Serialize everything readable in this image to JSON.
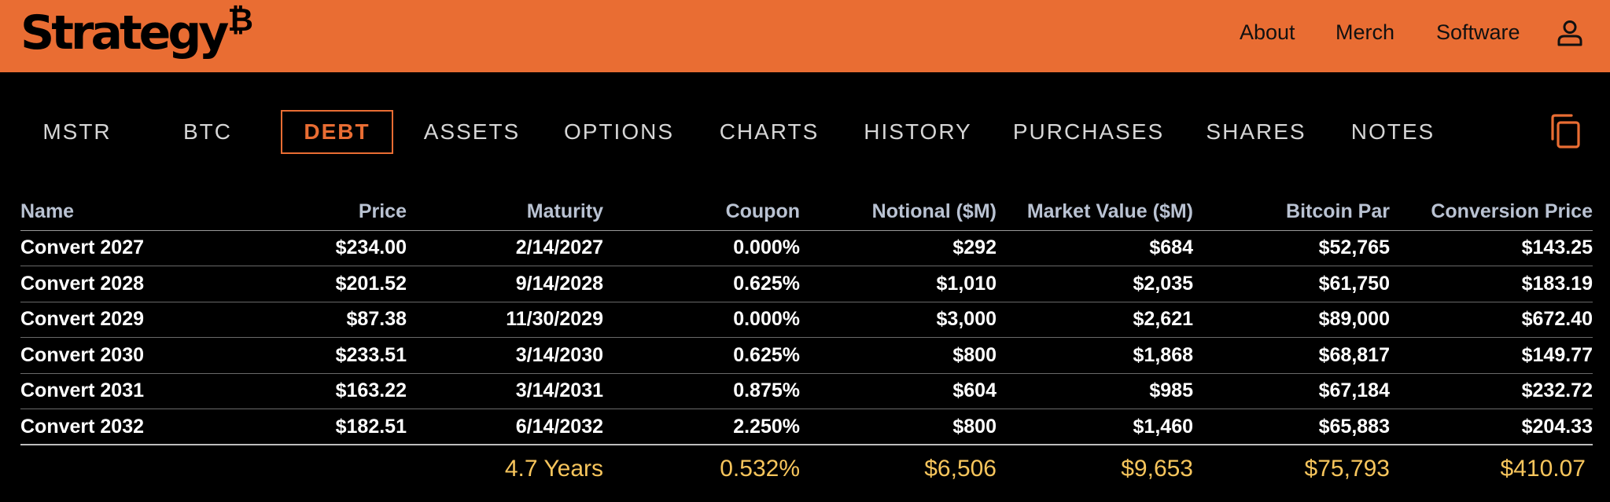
{
  "brand": {
    "name": "Strategy",
    "mark": "₿",
    "accent_color": "#E96D33"
  },
  "header_nav": [
    {
      "label": "About"
    },
    {
      "label": "Merch"
    },
    {
      "label": "Software"
    }
  ],
  "user_icon": "user-icon",
  "tabs": [
    {
      "label": "MSTR"
    },
    {
      "label": "BTC"
    },
    {
      "label": "DEBT",
      "active": true
    },
    {
      "label": "ASSETS"
    },
    {
      "label": "OPTIONS"
    },
    {
      "label": "CHARTS"
    },
    {
      "label": "HISTORY"
    },
    {
      "label": "PURCHASES"
    },
    {
      "label": "SHARES"
    },
    {
      "label": "NOTES"
    }
  ],
  "copy_icon": "copy-icon",
  "table": {
    "headers": [
      "Name",
      "Price",
      "Maturity",
      "Coupon",
      "Notional ($M)",
      "Market Value ($M)",
      "Bitcoin Par",
      "Conversion Price"
    ],
    "rows": [
      [
        "Convert 2027",
        "$234.00",
        "2/14/2027",
        "0.000%",
        "$292",
        "$684",
        "$52,765",
        "$143.25"
      ],
      [
        "Convert 2028",
        "$201.52",
        "9/14/2028",
        "0.625%",
        "$1,010",
        "$2,035",
        "$61,750",
        "$183.19"
      ],
      [
        "Convert 2029",
        "$87.38",
        "11/30/2029",
        "0.000%",
        "$3,000",
        "$2,621",
        "$89,000",
        "$672.40"
      ],
      [
        "Convert 2030",
        "$233.51",
        "3/14/2030",
        "0.625%",
        "$800",
        "$1,868",
        "$68,817",
        "$149.77"
      ],
      [
        "Convert 2031",
        "$163.22",
        "3/14/2031",
        "0.875%",
        "$604",
        "$985",
        "$67,184",
        "$232.72"
      ],
      [
        "Convert 2032",
        "$182.51",
        "6/14/2032",
        "2.250%",
        "$800",
        "$1,460",
        "$65,883",
        "$204.33"
      ]
    ],
    "summary": [
      "",
      "",
      "4.7 Years",
      "0.532%",
      "$6,506",
      "$9,653",
      "$75,793",
      "$410.07"
    ],
    "summary_color": "#F7C55C"
  }
}
